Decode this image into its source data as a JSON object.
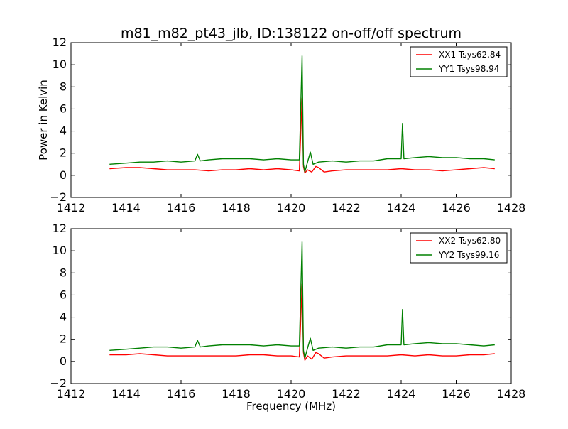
{
  "page_title": "m81_m82_pt43_jlb, ID:138122 on-off/off spectrum",
  "chart_data": [
    {
      "type": "line",
      "title": "m81_m82_pt43_jlb, ID:138122 on-off/off spectrum",
      "xlabel": "",
      "ylabel": "Power in Kelvin",
      "xlim": [
        1412,
        1428
      ],
      "ylim": [
        -2,
        12
      ],
      "xticks": [
        "1412",
        "1414",
        "1416",
        "1418",
        "1420",
        "1422",
        "1424",
        "1426",
        "1428"
      ],
      "yticks": [
        "−2",
        "0",
        "2",
        "4",
        "6",
        "8",
        "10",
        "12"
      ],
      "legend_position": "top-right",
      "grid": false,
      "series": [
        {
          "name": "XX1 Tsys62.84",
          "color": "#ff0000",
          "x": [
            1413.4,
            1414.0,
            1414.5,
            1415.0,
            1415.5,
            1416.0,
            1416.5,
            1417.0,
            1417.5,
            1418.0,
            1418.5,
            1419.0,
            1419.5,
            1420.0,
            1420.3,
            1420.4,
            1420.45,
            1420.5,
            1420.6,
            1420.75,
            1420.9,
            1421.0,
            1421.2,
            1421.5,
            1422.0,
            1422.5,
            1423.0,
            1423.5,
            1424.0,
            1424.5,
            1425.0,
            1425.5,
            1426.0,
            1426.5,
            1427.0,
            1427.4
          ],
          "y": [
            0.6,
            0.7,
            0.7,
            0.6,
            0.5,
            0.5,
            0.5,
            0.4,
            0.5,
            0.5,
            0.6,
            0.5,
            0.6,
            0.5,
            0.4,
            7.0,
            0.8,
            0.2,
            0.5,
            0.3,
            0.8,
            0.7,
            0.3,
            0.4,
            0.5,
            0.5,
            0.5,
            0.5,
            0.6,
            0.5,
            0.5,
            0.4,
            0.5,
            0.6,
            0.7,
            0.6
          ]
        },
        {
          "name": "YY1 Tsys98.94",
          "color": "#008000",
          "x": [
            1413.4,
            1414.0,
            1414.5,
            1415.0,
            1415.5,
            1416.0,
            1416.5,
            1416.6,
            1416.7,
            1417.0,
            1417.5,
            1418.0,
            1418.5,
            1419.0,
            1419.5,
            1420.0,
            1420.3,
            1420.4,
            1420.45,
            1420.5,
            1420.6,
            1420.7,
            1420.8,
            1421.0,
            1421.5,
            1422.0,
            1422.5,
            1423.0,
            1423.5,
            1424.0,
            1424.05,
            1424.1,
            1424.5,
            1425.0,
            1425.5,
            1426.0,
            1426.5,
            1427.0,
            1427.4
          ],
          "y": [
            1.0,
            1.1,
            1.2,
            1.2,
            1.3,
            1.2,
            1.3,
            1.9,
            1.3,
            1.4,
            1.5,
            1.5,
            1.5,
            1.4,
            1.5,
            1.4,
            1.4,
            10.8,
            1.0,
            0.3,
            1.2,
            2.1,
            1.0,
            1.2,
            1.3,
            1.2,
            1.3,
            1.3,
            1.5,
            1.5,
            4.7,
            1.5,
            1.6,
            1.7,
            1.6,
            1.6,
            1.5,
            1.5,
            1.4
          ]
        }
      ]
    },
    {
      "type": "line",
      "title": "",
      "xlabel": "Frequency (MHz)",
      "ylabel": "",
      "xlim": [
        1412,
        1428
      ],
      "ylim": [
        -2,
        12
      ],
      "xticks": [
        "1412",
        "1414",
        "1416",
        "1418",
        "1420",
        "1422",
        "1424",
        "1426",
        "1428"
      ],
      "yticks": [
        "−2",
        "0",
        "2",
        "4",
        "6",
        "8",
        "10",
        "12"
      ],
      "legend_position": "top-right",
      "grid": false,
      "series": [
        {
          "name": "XX2 Tsys62.80",
          "color": "#ff0000",
          "x": [
            1413.4,
            1414.0,
            1414.5,
            1415.0,
            1415.5,
            1416.0,
            1416.5,
            1417.0,
            1417.5,
            1418.0,
            1418.5,
            1419.0,
            1419.5,
            1420.0,
            1420.3,
            1420.4,
            1420.45,
            1420.5,
            1420.6,
            1420.75,
            1420.9,
            1421.0,
            1421.2,
            1421.5,
            1422.0,
            1422.5,
            1423.0,
            1423.5,
            1424.0,
            1424.5,
            1425.0,
            1425.5,
            1426.0,
            1426.5,
            1427.0,
            1427.4
          ],
          "y": [
            0.6,
            0.6,
            0.7,
            0.6,
            0.5,
            0.5,
            0.5,
            0.5,
            0.5,
            0.5,
            0.6,
            0.6,
            0.5,
            0.5,
            0.4,
            7.0,
            0.8,
            0.1,
            0.5,
            0.2,
            0.8,
            0.7,
            0.3,
            0.4,
            0.5,
            0.5,
            0.5,
            0.5,
            0.6,
            0.5,
            0.6,
            0.5,
            0.5,
            0.6,
            0.6,
            0.7
          ]
        },
        {
          "name": "YY2 Tsys99.16",
          "color": "#008000",
          "x": [
            1413.4,
            1414.0,
            1414.5,
            1415.0,
            1415.5,
            1416.0,
            1416.5,
            1416.6,
            1416.7,
            1417.0,
            1417.5,
            1418.0,
            1418.5,
            1419.0,
            1419.5,
            1420.0,
            1420.3,
            1420.4,
            1420.45,
            1420.5,
            1420.6,
            1420.7,
            1420.8,
            1421.0,
            1421.5,
            1422.0,
            1422.5,
            1423.0,
            1423.5,
            1424.0,
            1424.05,
            1424.1,
            1424.5,
            1425.0,
            1425.5,
            1426.0,
            1426.5,
            1427.0,
            1427.4
          ],
          "y": [
            1.0,
            1.1,
            1.2,
            1.3,
            1.3,
            1.2,
            1.3,
            1.9,
            1.3,
            1.4,
            1.5,
            1.5,
            1.5,
            1.4,
            1.5,
            1.4,
            1.4,
            10.8,
            1.0,
            0.3,
            1.2,
            2.1,
            1.0,
            1.2,
            1.3,
            1.2,
            1.3,
            1.3,
            1.5,
            1.5,
            4.7,
            1.5,
            1.6,
            1.7,
            1.6,
            1.6,
            1.5,
            1.4,
            1.5
          ]
        }
      ]
    }
  ]
}
